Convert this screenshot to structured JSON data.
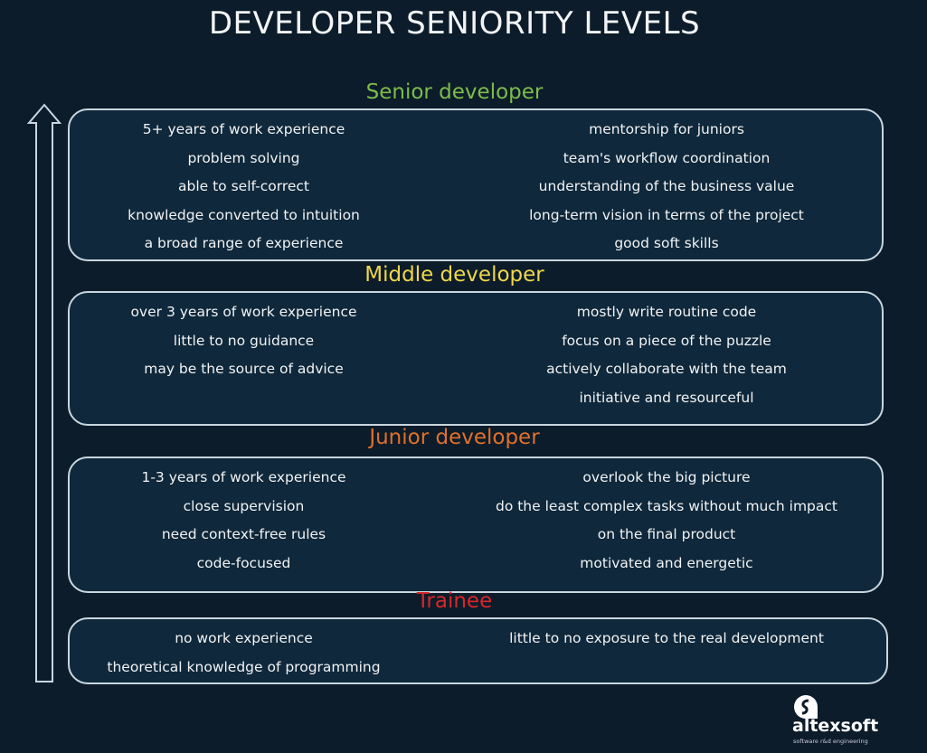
{
  "title": "DEVELOPER SENIORITY LEVELS",
  "colors": {
    "background": "#0c1c2a",
    "senior": "#7dbb4a",
    "middle": "#f0d64a",
    "junior": "#e0702a",
    "trainee": "#d8262a"
  },
  "levels": [
    {
      "heading": "Senior developer",
      "color": "#7dbb4a",
      "left": [
        "5+ years of work experience",
        "problem solving",
        "able to self-correct",
        "knowledge converted to intuition",
        "a broad range of experience"
      ],
      "right": [
        "mentorship for juniors",
        "team's workflow coordination",
        "understanding of the business value",
        "long-term vision in terms of the project",
        "good soft skills"
      ]
    },
    {
      "heading": "Middle developer",
      "color": "#f0d64a",
      "left": [
        "over 3 years of work experience",
        "little to no guidance",
        "may be the source of advice"
      ],
      "right": [
        "mostly write routine code",
        "focus on a piece of the puzzle",
        "actively collaborate with the team",
        "initiative and resourceful"
      ]
    },
    {
      "heading": "Junior developer",
      "color": "#e0702a",
      "left": [
        "1-3 years of work experience",
        "close supervision",
        "need context-free rules",
        "code-focused"
      ],
      "right": [
        "overlook the big picture",
        "do the least complex tasks  without much impact",
        "on the final product",
        "motivated and energetic"
      ]
    },
    {
      "heading": "Trainee",
      "color": "#d8262a",
      "left": [
        "no work experience",
        "theoretical knowledge of programming"
      ],
      "right": [
        "little to no exposure  to the real development"
      ]
    }
  ],
  "logo": {
    "name": "altexsoft",
    "tagline": "software r&d engineering",
    "icon": "altexsoft-logo-icon"
  },
  "arrow": {
    "icon": "arrow-up-icon"
  }
}
